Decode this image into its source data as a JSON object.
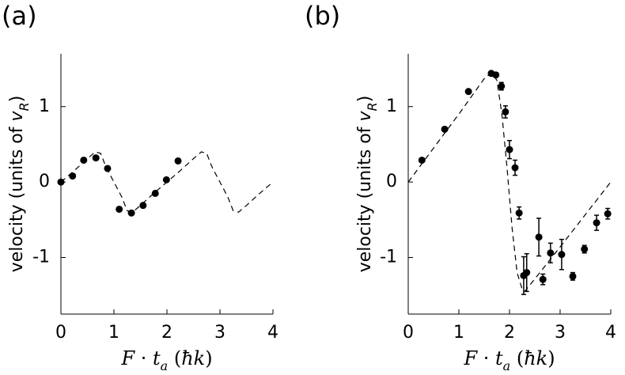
{
  "chart_data": [
    {
      "type": "scatter",
      "panel_label": "(a)",
      "xlabel_parts": [
        {
          "text": "F",
          "italic": true
        },
        {
          "text": " · "
        },
        {
          "text": "t",
          "italic": true
        },
        {
          "text": "a",
          "sub": true,
          "italic": true
        },
        {
          "text": " ("
        },
        {
          "text": "ħk",
          "italic": true
        },
        {
          "text": ")"
        }
      ],
      "ylabel_parts": [
        {
          "text": "velocity (units of "
        },
        {
          "text": "v",
          "italic": true
        },
        {
          "text": "R",
          "sub": true,
          "italic": true
        },
        {
          "text": ")"
        }
      ],
      "xlim": [
        0,
        4
      ],
      "ylim": [
        -1.75,
        1.7
      ],
      "xticks": [
        0,
        1,
        2,
        3,
        4
      ],
      "yticks": [
        -1,
        0,
        1
      ],
      "points": {
        "color": "#000000",
        "x": [
          0,
          0.22,
          0.43,
          0.66,
          0.88,
          1.1,
          1.33,
          1.55,
          1.78,
          1.99,
          2.21
        ],
        "values": [
          0,
          0.08,
          0.29,
          0.32,
          0.18,
          -0.36,
          -0.41,
          -0.31,
          -0.15,
          0.03,
          0.28
        ]
      },
      "curve": {
        "color": "#000000",
        "dashed": true,
        "x": [
          0,
          0.25,
          0.5,
          0.65,
          0.75,
          0.85,
          1.0,
          1.15,
          1.25,
          1.35,
          1.5,
          1.75,
          2.0,
          2.25,
          2.5,
          2.65,
          2.75,
          2.85,
          3.0,
          3.15,
          3.25,
          3.35,
          3.5,
          3.75,
          4.0
        ],
        "values": [
          0,
          0.15,
          0.31,
          0.4,
          0.38,
          0.2,
          0,
          -0.2,
          -0.38,
          -0.4,
          -0.31,
          -0.15,
          0,
          0.15,
          0.31,
          0.4,
          0.38,
          0.2,
          0,
          -0.2,
          -0.38,
          -0.4,
          -0.31,
          -0.15,
          0
        ]
      }
    },
    {
      "type": "scatter",
      "panel_label": "(b)",
      "xlabel_parts": [
        {
          "text": "F",
          "italic": true
        },
        {
          "text": " · "
        },
        {
          "text": "t",
          "italic": true
        },
        {
          "text": "a",
          "sub": true,
          "italic": true
        },
        {
          "text": " ("
        },
        {
          "text": "ħk",
          "italic": true
        },
        {
          "text": ")"
        }
      ],
      "ylabel_parts": [
        {
          "text": "velocity (units of "
        },
        {
          "text": "v",
          "italic": true
        },
        {
          "text": "R",
          "sub": true,
          "italic": true
        },
        {
          "text": ")"
        }
      ],
      "xlim": [
        0,
        4
      ],
      "ylim": [
        -1.75,
        1.7
      ],
      "xticks": [
        0,
        1,
        2,
        3,
        4
      ],
      "yticks": [
        -1,
        0,
        1
      ],
      "points": {
        "color": "#000000",
        "x": [
          0.27,
          0.72,
          1.19,
          1.64,
          1.73,
          1.84,
          1.92,
          2.0,
          2.11,
          2.19,
          2.28,
          2.34,
          2.58,
          2.66,
          2.81,
          3.03,
          3.25,
          3.48,
          3.72,
          3.94
        ],
        "values": [
          0.29,
          0.7,
          1.2,
          1.44,
          1.42,
          1.27,
          0.93,
          0.43,
          0.19,
          -0.41,
          -1.24,
          -1.2,
          -0.73,
          -1.29,
          -0.94,
          -0.96,
          -1.25,
          -0.89,
          -0.54,
          -0.42
        ],
        "errors": [
          0,
          0,
          0,
          0.02,
          0.03,
          0.05,
          0.08,
          0.12,
          0.1,
          0.08,
          0.25,
          0.25,
          0.25,
          0.07,
          0.13,
          0.2,
          0.05,
          0.05,
          0.1,
          0.07
        ]
      },
      "curve": {
        "color": "#000000",
        "dashed": true,
        "x": [
          0,
          0.5,
          1.0,
          1.5,
          1.65,
          1.75,
          1.85,
          1.95,
          2.05,
          2.15,
          2.25,
          2.3,
          2.6,
          3.0,
          3.5,
          4.0
        ],
        "values": [
          0,
          0.45,
          0.9,
          1.37,
          1.45,
          1.35,
          0.9,
          0.2,
          -0.6,
          -1.2,
          -1.42,
          -1.45,
          -1.2,
          -0.86,
          -0.43,
          0
        ]
      }
    }
  ]
}
